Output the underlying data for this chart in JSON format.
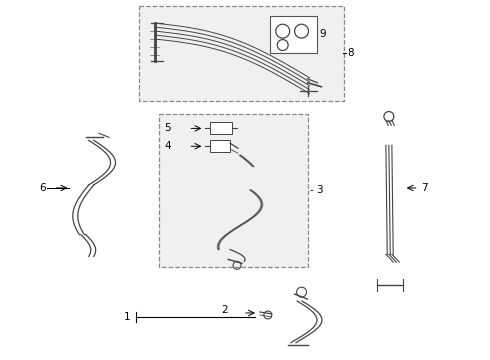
{
  "bg_color": "#ffffff",
  "line_color": "#444444",
  "box_fill": "#f2f2f2",
  "box_edge": "#888888",
  "label_color": "#000000",
  "figsize": [
    4.9,
    3.6
  ],
  "dpi": 100
}
